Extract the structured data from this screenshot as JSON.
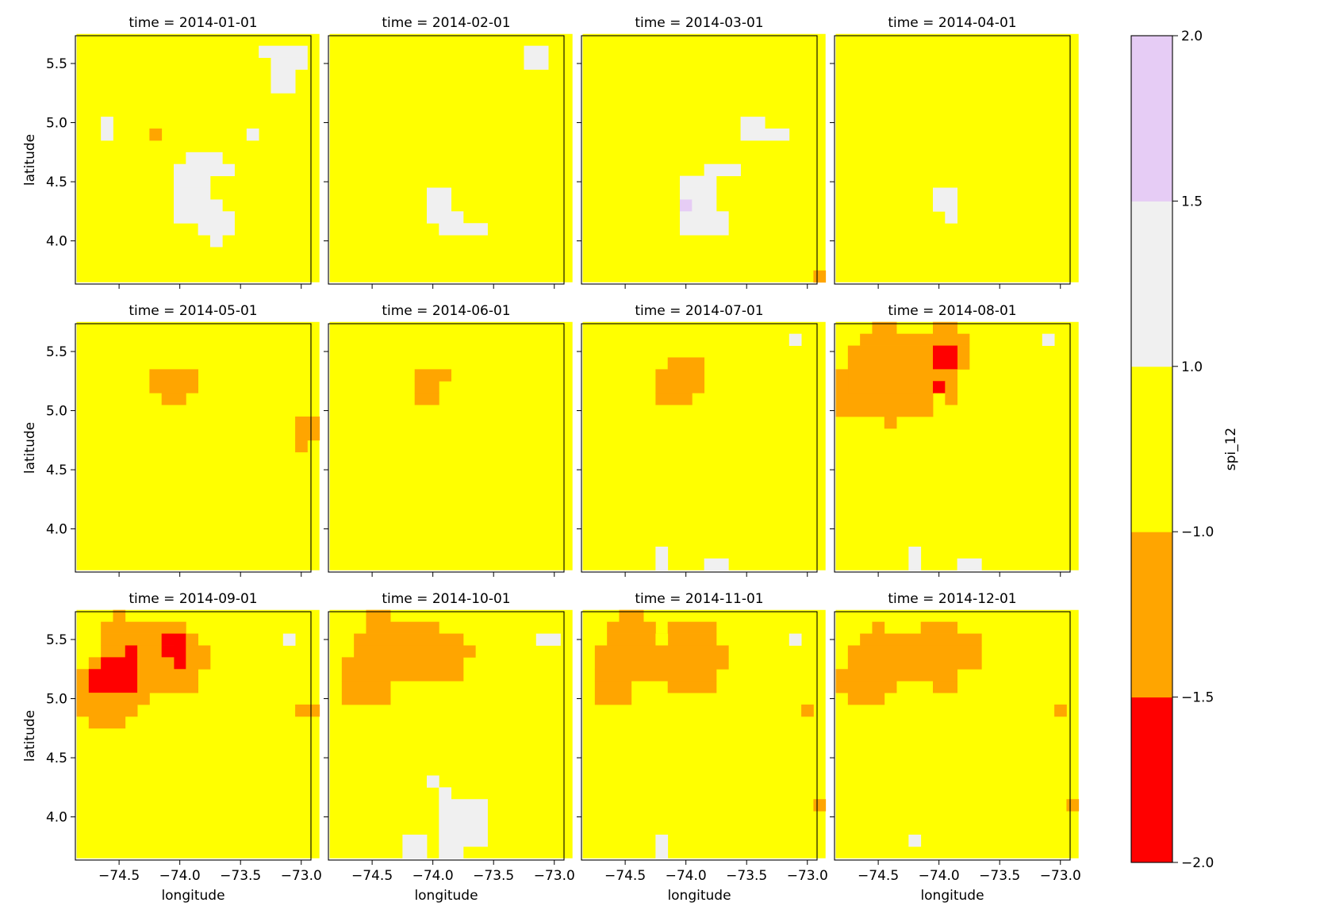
{
  "chart_data": {
    "type": "heatmap",
    "variable_label": "spi_12",
    "xlabel": "longitude",
    "ylabel": "latitude",
    "xlim": [
      -74.86,
      -72.92
    ],
    "ylim": [
      3.635,
      5.735
    ],
    "x_ticks": [
      -74.5,
      -74.0,
      -73.5,
      -73.0
    ],
    "x_tick_labels": [
      "−74.5",
      "−74.0",
      "−73.5",
      "−73.0"
    ],
    "y_ticks": [
      4.0,
      4.5,
      5.0,
      5.5
    ],
    "y_tick_labels": [
      "4.0",
      "4.5",
      "5.0",
      "5.5"
    ],
    "grid": {
      "cols": 20,
      "rows": 21,
      "lon_start": -74.85,
      "lat_top": 5.7,
      "step": 0.1
    },
    "colorbar": {
      "levels": [
        -2.0,
        -1.5,
        -1.0,
        1.0,
        1.5,
        2.0
      ],
      "tick_labels": [
        "−2.0",
        "−1.5",
        "−1.0",
        "1.0",
        "1.5",
        "2.0"
      ],
      "colors": [
        "#ff0000",
        "#ffa500",
        "#ffff00",
        "#f0f0f0",
        "#e6ccf5"
      ],
      "class_meaning": {
        "1": "-2.0 to -1.5",
        "2": "-1.5 to -1.0",
        "3": "-1.0 to 1.0",
        "4": "1.0 to 1.5",
        "5": "1.5 to 2.0"
      }
    },
    "default_class": 3,
    "panels": [
      {
        "title": "time = 2014-01-01",
        "cells": [
          [
            15,
            1,
            18,
            1,
            4
          ],
          [
            16,
            2,
            18,
            2,
            4
          ],
          [
            16,
            3,
            17,
            3,
            4
          ],
          [
            16,
            4,
            17,
            4,
            4
          ],
          [
            2,
            7,
            2,
            8,
            4
          ],
          [
            14,
            8,
            14,
            8,
            4
          ],
          [
            6,
            8,
            6,
            8,
            2
          ],
          [
            9,
            10,
            11,
            10,
            4
          ],
          [
            8,
            11,
            12,
            11,
            4
          ],
          [
            8,
            12,
            10,
            12,
            4
          ],
          [
            8,
            13,
            10,
            13,
            4
          ],
          [
            8,
            14,
            11,
            14,
            4
          ],
          [
            8,
            15,
            12,
            15,
            4
          ],
          [
            10,
            16,
            12,
            16,
            4
          ],
          [
            11,
            17,
            11,
            17,
            4
          ]
        ]
      },
      {
        "title": "time = 2014-02-01",
        "cells": [
          [
            16,
            1,
            17,
            2,
            4
          ],
          [
            8,
            13,
            9,
            14,
            4
          ],
          [
            8,
            15,
            10,
            15,
            4
          ],
          [
            9,
            16,
            12,
            16,
            4
          ]
        ]
      },
      {
        "title": "time = 2014-03-01",
        "cells": [
          [
            13,
            7,
            14,
            7,
            4
          ],
          [
            13,
            8,
            16,
            8,
            4
          ],
          [
            10,
            11,
            12,
            11,
            4
          ],
          [
            8,
            12,
            10,
            12,
            4
          ],
          [
            8,
            13,
            10,
            13,
            4
          ],
          [
            8,
            14,
            8,
            14,
            5
          ],
          [
            9,
            14,
            10,
            14,
            4
          ],
          [
            8,
            15,
            11,
            15,
            4
          ],
          [
            8,
            16,
            11,
            16,
            4
          ],
          [
            19,
            20,
            19,
            20,
            2
          ]
        ]
      },
      {
        "title": "time = 2014-04-01",
        "cells": [
          [
            8,
            13,
            9,
            14,
            4
          ],
          [
            9,
            15,
            9,
            15,
            4
          ]
        ]
      },
      {
        "title": "time = 2014-05-01",
        "cells": [
          [
            6,
            4,
            9,
            5,
            2
          ],
          [
            7,
            6,
            8,
            6,
            2
          ],
          [
            18,
            8,
            19,
            9,
            2
          ],
          [
            18,
            10,
            18,
            10,
            2
          ]
        ]
      },
      {
        "title": "time = 2014-06-01",
        "cells": [
          [
            7,
            4,
            9,
            4,
            2
          ],
          [
            7,
            5,
            8,
            5,
            2
          ],
          [
            7,
            6,
            8,
            6,
            2
          ]
        ]
      },
      {
        "title": "time = 2014-07-01",
        "cells": [
          [
            17,
            1,
            17,
            1,
            4
          ],
          [
            7,
            3,
            9,
            3,
            2
          ],
          [
            6,
            4,
            9,
            5,
            2
          ],
          [
            6,
            6,
            8,
            6,
            2
          ],
          [
            6,
            19,
            6,
            20,
            4
          ],
          [
            10,
            20,
            11,
            20,
            4
          ]
        ]
      },
      {
        "title": "time = 2014-08-01",
        "cells": [
          [
            3,
            0,
            4,
            0,
            2
          ],
          [
            8,
            0,
            9,
            0,
            2
          ],
          [
            17,
            1,
            17,
            1,
            4
          ],
          [
            2,
            1,
            7,
            1,
            2
          ],
          [
            8,
            1,
            10,
            1,
            2
          ],
          [
            7,
            2,
            7,
            3,
            2
          ],
          [
            10,
            2,
            10,
            3,
            2
          ],
          [
            8,
            2,
            9,
            3,
            1
          ],
          [
            1,
            2,
            6,
            5,
            2
          ],
          [
            0,
            4,
            0,
            7,
            2
          ],
          [
            1,
            6,
            7,
            7,
            2
          ],
          [
            7,
            4,
            9,
            4,
            2
          ],
          [
            7,
            5,
            7,
            5,
            2
          ],
          [
            8,
            5,
            8,
            5,
            1
          ],
          [
            9,
            5,
            9,
            6,
            2
          ],
          [
            4,
            8,
            4,
            8,
            2
          ],
          [
            6,
            19,
            6,
            20,
            4
          ],
          [
            10,
            20,
            11,
            20,
            4
          ]
        ]
      },
      {
        "title": "time = 2014-09-01",
        "cells": [
          [
            3,
            0,
            3,
            0,
            2
          ],
          [
            2,
            1,
            8,
            1,
            2
          ],
          [
            2,
            2,
            7,
            2,
            2
          ],
          [
            7,
            2,
            8,
            2,
            1
          ],
          [
            9,
            2,
            9,
            2,
            2
          ],
          [
            17,
            2,
            17,
            2,
            4
          ],
          [
            2,
            3,
            3,
            3,
            2
          ],
          [
            4,
            3,
            4,
            3,
            1
          ],
          [
            5,
            3,
            7,
            3,
            2
          ],
          [
            7,
            3,
            8,
            4,
            1
          ],
          [
            9,
            3,
            10,
            4,
            2
          ],
          [
            1,
            4,
            2,
            4,
            2
          ],
          [
            2,
            4,
            4,
            4,
            1
          ],
          [
            5,
            4,
            6,
            4,
            2
          ],
          [
            6,
            4,
            7,
            4,
            2
          ],
          [
            0,
            5,
            0,
            6,
            2
          ],
          [
            1,
            5,
            4,
            6,
            1
          ],
          [
            5,
            5,
            9,
            6,
            2
          ],
          [
            0,
            7,
            5,
            7,
            2
          ],
          [
            0,
            8,
            4,
            8,
            2
          ],
          [
            1,
            9,
            3,
            9,
            2
          ],
          [
            18,
            8,
            19,
            8,
            2
          ]
        ]
      },
      {
        "title": "time = 2014-10-01",
        "cells": [
          [
            3,
            0,
            4,
            0,
            2
          ],
          [
            3,
            1,
            8,
            1,
            2
          ],
          [
            2,
            2,
            10,
            2,
            2
          ],
          [
            2,
            3,
            11,
            3,
            2
          ],
          [
            1,
            4,
            10,
            5,
            2
          ],
          [
            1,
            6,
            4,
            7,
            2
          ],
          [
            17,
            2,
            18,
            2,
            4
          ],
          [
            8,
            14,
            8,
            14,
            4
          ],
          [
            9,
            15,
            9,
            15,
            4
          ],
          [
            9,
            16,
            12,
            19,
            4
          ],
          [
            6,
            19,
            7,
            20,
            4
          ],
          [
            9,
            20,
            10,
            20,
            4
          ]
        ]
      },
      {
        "title": "time = 2014-11-01",
        "cells": [
          [
            3,
            0,
            4,
            0,
            2
          ],
          [
            2,
            1,
            5,
            1,
            2
          ],
          [
            7,
            1,
            10,
            1,
            2
          ],
          [
            2,
            2,
            10,
            2,
            2
          ],
          [
            6,
            2,
            6,
            2,
            3
          ],
          [
            1,
            3,
            11,
            4,
            2
          ],
          [
            1,
            5,
            10,
            5,
            2
          ],
          [
            1,
            6,
            3,
            7,
            2
          ],
          [
            7,
            6,
            10,
            6,
            2
          ],
          [
            17,
            2,
            17,
            2,
            4
          ],
          [
            18,
            8,
            18,
            8,
            2
          ],
          [
            19,
            16,
            19,
            16,
            2
          ],
          [
            6,
            19,
            6,
            20,
            4
          ]
        ]
      },
      {
        "title": "time = 2014-12-01",
        "cells": [
          [
            3,
            1,
            3,
            1,
            2
          ],
          [
            7,
            1,
            9,
            1,
            2
          ],
          [
            2,
            2,
            5,
            2,
            2
          ],
          [
            6,
            2,
            11,
            2,
            2
          ],
          [
            1,
            3,
            11,
            4,
            2
          ],
          [
            0,
            5,
            9,
            5,
            2
          ],
          [
            0,
            6,
            4,
            6,
            2
          ],
          [
            8,
            6,
            9,
            6,
            2
          ],
          [
            1,
            7,
            3,
            7,
            2
          ],
          [
            18,
            8,
            18,
            8,
            2
          ],
          [
            19,
            16,
            19,
            16,
            2
          ],
          [
            6,
            19,
            6,
            19,
            4
          ]
        ]
      }
    ]
  }
}
